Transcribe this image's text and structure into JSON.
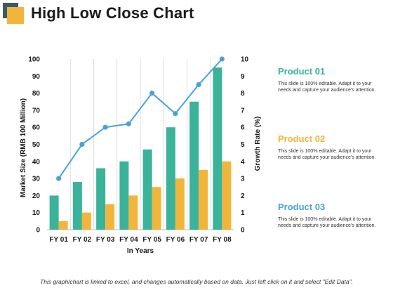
{
  "title": "High Low Close Chart",
  "colors": {
    "bar1": "#3ab39a",
    "bar2": "#f2b53b",
    "line": "#4aa3d4",
    "product1": "#3ab39a",
    "product2": "#f2b53b",
    "product3": "#4aa3d4"
  },
  "legend": [
    {
      "name": "Product 01",
      "desc": "This slide is 100% editable. Adapt it to your needs and capture your audience's attention."
    },
    {
      "name": "Product 02",
      "desc": "This slide is 100% editable. Adapt it to your needs and capture your audience's attention."
    },
    {
      "name": "Product 03",
      "desc": "This slide is 100% editable. Adapt it to your needs and capture your audience's attention."
    }
  ],
  "footnote": "This graph/chart is linked to excel, and changes automatically based on data. Just left click on it and select \"Edit Data\".",
  "chart_data": {
    "type": "bar",
    "categories": [
      "FY 01",
      "FY 02",
      "FY 03",
      "FY 04",
      "FY 05",
      "FY 06",
      "FY 07",
      "FY 08"
    ],
    "xlabel": "In Years",
    "ylabel": "Market Size (RMB 100 Million)",
    "y2label": "Growth Rate (%)",
    "ylim": [
      0,
      100
    ],
    "yticks": [
      0,
      10,
      20,
      30,
      40,
      50,
      60,
      70,
      80,
      90,
      100
    ],
    "y2lim": [
      0,
      10
    ],
    "y2ticks": [
      0,
      1,
      2,
      3,
      4,
      5,
      6,
      7,
      8,
      9,
      10
    ],
    "grid": "vertical",
    "series": [
      {
        "type": "bar",
        "axis": "left",
        "values": [
          20,
          28,
          36,
          40,
          47,
          60,
          75,
          95
        ]
      },
      {
        "type": "bar",
        "axis": "left",
        "values": [
          5,
          10,
          15,
          20,
          25,
          30,
          35,
          40
        ]
      },
      {
        "type": "line",
        "axis": "right",
        "values": [
          3,
          5,
          6,
          6.2,
          8,
          6.8,
          8.5,
          10
        ]
      }
    ]
  }
}
